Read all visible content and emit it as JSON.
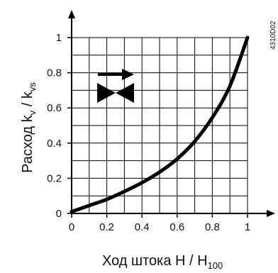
{
  "chart_data": {
    "type": "line",
    "x_axis": {
      "label_main": "Ход штока H / H",
      "label_sub": "100",
      "range": [
        0,
        1
      ],
      "ticks": [
        {
          "value": 0,
          "label": "0"
        },
        {
          "value": 0.2,
          "label": "0.2"
        },
        {
          "value": 0.4,
          "label": "0.4"
        },
        {
          "value": 0.6,
          "label": "0.6"
        },
        {
          "value": 0.8,
          "label": "0.8"
        },
        {
          "value": 1,
          "label": "1"
        }
      ]
    },
    "y_axis": {
      "label_parts": [
        "Расход k",
        "v",
        " / k",
        "vs"
      ],
      "range": [
        0,
        1
      ],
      "ticks": [
        {
          "value": 0,
          "label": "0"
        },
        {
          "value": 0.2,
          "label": "0.2"
        },
        {
          "value": 0.4,
          "label": "0.4"
        },
        {
          "value": 0.6,
          "label": "0.6"
        },
        {
          "value": 0.8,
          "label": "0.8"
        },
        {
          "value": 1,
          "label": "1"
        }
      ]
    },
    "grid": {
      "on": true,
      "x_step": 0.1,
      "y_step": 0.1
    },
    "series": [
      {
        "x": [
          0,
          0.1,
          0.2,
          0.3,
          0.4,
          0.5,
          0.6,
          0.7,
          0.8,
          0.9,
          1.0
        ],
        "y": [
          0.01,
          0.045,
          0.08,
          0.125,
          0.175,
          0.235,
          0.31,
          0.41,
          0.545,
          0.725,
          1.0
        ]
      }
    ],
    "annotations": {
      "figure_code": "4310D02",
      "symbols": [
        "flow-direction-arrow-icon",
        "valve-symbol-icon"
      ]
    },
    "colors": {
      "line": "#000000",
      "grid": "#000000",
      "background": "#ffffff"
    }
  }
}
